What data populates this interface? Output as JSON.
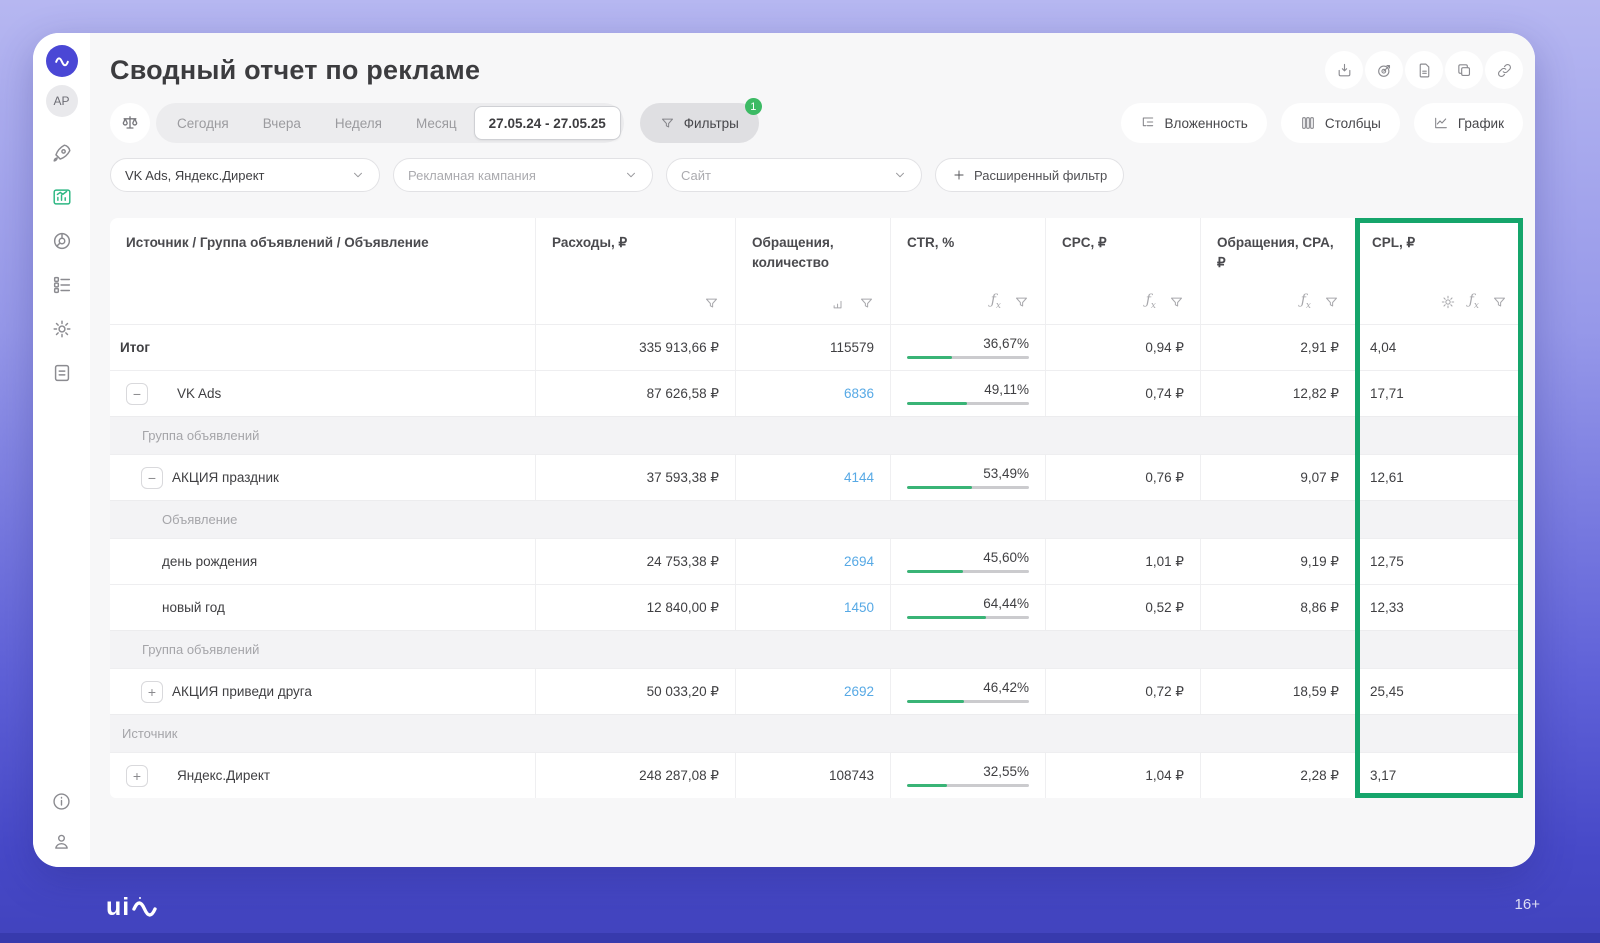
{
  "page": {
    "title": "Сводный отчет по рекламе"
  },
  "sidebar": {
    "avatar": "AP"
  },
  "toolbar": {
    "date_tabs": [
      "Сегодня",
      "Вчера",
      "Неделя",
      "Месяц"
    ],
    "date_range": "27.05.24 - 27.05.25",
    "filters_label": "Фильтры",
    "filters_badge": "1",
    "view_buttons": [
      "Вложенность",
      "Столбцы",
      "График"
    ]
  },
  "filters": {
    "source_value": "VK Ads, Яндекс.Директ",
    "campaign_placeholder": "Рекламная кампания",
    "site_placeholder": "Сайт",
    "advanced_label": "Расширенный фильтр"
  },
  "table": {
    "columns": [
      "Источник / Группа объявлений / Объявление",
      "Расходы, ₽",
      "Обращения, количество",
      "CTR, %",
      "CPC, ₽",
      "Обращения, CPA, ₽",
      "CPL, ₽"
    ],
    "rows": [
      {
        "type": "data",
        "level": 0,
        "bold": true,
        "name": "Итог",
        "expander": null,
        "cost": "335 913,66 ₽",
        "leads": "115579",
        "leads_link": false,
        "ctr": "36,67%",
        "ctr_pct": 36.67,
        "cpc": "0,94 ₽",
        "cpa": "2,91 ₽",
        "cpl": "4,04"
      },
      {
        "type": "data",
        "level": 1,
        "bold": false,
        "name": "VK Ads",
        "expander": "minus",
        "cost": "87 626,58 ₽",
        "leads": "6836",
        "leads_link": true,
        "ctr": "49,11%",
        "ctr_pct": 49.11,
        "cpc": "0,74 ₽",
        "cpa": "12,82 ₽",
        "cpl": "17,71"
      },
      {
        "type": "section",
        "level": 1,
        "label": "Группа объявлений"
      },
      {
        "type": "data",
        "level": 2,
        "bold": false,
        "name": "АКЦИЯ праздник",
        "expander": "minus",
        "cost": "37 593,38 ₽",
        "leads": "4144",
        "leads_link": true,
        "ctr": "53,49%",
        "ctr_pct": 53.49,
        "cpc": "0,76 ₽",
        "cpa": "9,07 ₽",
        "cpl": "12,61"
      },
      {
        "type": "section",
        "level": 2,
        "label": "Объявление"
      },
      {
        "type": "data",
        "level": 3,
        "bold": false,
        "name": "день рождения",
        "expander": null,
        "cost": "24 753,38 ₽",
        "leads": "2694",
        "leads_link": true,
        "ctr": "45,60%",
        "ctr_pct": 45.6,
        "cpc": "1,01 ₽",
        "cpa": "9,19 ₽",
        "cpl": "12,75"
      },
      {
        "type": "data",
        "level": 3,
        "bold": false,
        "name": "новый год",
        "expander": null,
        "cost": "12 840,00 ₽",
        "leads": "1450",
        "leads_link": true,
        "ctr": "64,44%",
        "ctr_pct": 64.44,
        "cpc": "0,52 ₽",
        "cpa": "8,86 ₽",
        "cpl": "12,33"
      },
      {
        "type": "section",
        "level": 1,
        "label": "Группа объявлений"
      },
      {
        "type": "data",
        "level": 2,
        "bold": false,
        "name": "АКЦИЯ приведи друга",
        "expander": "plus",
        "cost": "50 033,20 ₽",
        "leads": "2692",
        "leads_link": true,
        "ctr": "46,42%",
        "ctr_pct": 46.42,
        "cpc": "0,72 ₽",
        "cpa": "18,59 ₽",
        "cpl": "25,45"
      },
      {
        "type": "section",
        "level": 0,
        "label": "Источник"
      },
      {
        "type": "data",
        "level": 1,
        "bold": false,
        "name": "Яндекс.Директ",
        "expander": "plus",
        "cost": "248 287,08 ₽",
        "leads": "108743",
        "leads_link": false,
        "ctr": "32,55%",
        "ctr_pct": 32.55,
        "cpc": "1,04 ₽",
        "cpa": "2,28 ₽",
        "cpl": "3,17"
      }
    ]
  },
  "footer": {
    "logo_text": "ui",
    "age_label": "16+"
  }
}
